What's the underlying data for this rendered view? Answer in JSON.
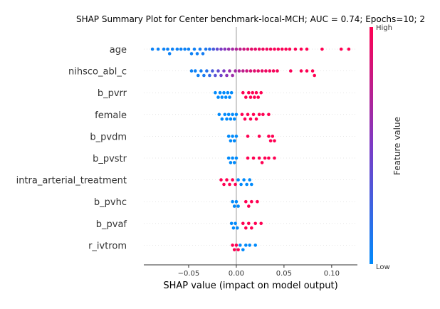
{
  "chart_data": {
    "type": "scatter",
    "title": "SHAP Summary Plot for Center benchmark-local-MCH; AUC = 0.74; Epochs=10; 2",
    "xlabel": "SHAP value (impact on model output)",
    "xlim": [
      -0.097,
      0.127
    ],
    "xticks": [
      {
        "value": -0.05,
        "label": "−0.05"
      },
      {
        "value": 0.0,
        "label": "0.00"
      },
      {
        "value": 0.05,
        "label": "0.05"
      },
      {
        "value": 0.1,
        "label": "0.10"
      }
    ],
    "features": [
      {
        "name": "age",
        "points": [
          {
            "x": -0.088,
            "v": 0.05
          },
          {
            "x": -0.082,
            "v": 0.05
          },
          {
            "x": -0.076,
            "v": 0.05
          },
          {
            "x": -0.072,
            "v": 0.05
          },
          {
            "x": -0.07,
            "v": 0.05
          },
          {
            "x": -0.067,
            "v": 0.05
          },
          {
            "x": -0.062,
            "v": 0.05
          },
          {
            "x": -0.058,
            "v": 0.05
          },
          {
            "x": -0.054,
            "v": 0.05
          },
          {
            "x": -0.05,
            "v": 0.05
          },
          {
            "x": -0.047,
            "v": 0.05
          },
          {
            "x": -0.044,
            "v": 0.06
          },
          {
            "x": -0.041,
            "v": 0.06
          },
          {
            "x": -0.038,
            "v": 0.08
          },
          {
            "x": -0.035,
            "v": 0.08
          },
          {
            "x": -0.032,
            "v": 0.12
          },
          {
            "x": -0.028,
            "v": 0.15
          },
          {
            "x": -0.024,
            "v": 0.3
          },
          {
            "x": -0.02,
            "v": 0.4
          },
          {
            "x": -0.016,
            "v": 0.5
          },
          {
            "x": -0.012,
            "v": 0.55
          },
          {
            "x": -0.008,
            "v": 0.6
          },
          {
            "x": -0.004,
            "v": 0.65
          },
          {
            "x": 0.0,
            "v": 0.7
          },
          {
            "x": 0.004,
            "v": 0.75
          },
          {
            "x": 0.008,
            "v": 0.8
          },
          {
            "x": 0.012,
            "v": 0.85
          },
          {
            "x": 0.016,
            "v": 0.9
          },
          {
            "x": 0.02,
            "v": 0.9
          },
          {
            "x": 0.024,
            "v": 0.92
          },
          {
            "x": 0.028,
            "v": 0.95
          },
          {
            "x": 0.032,
            "v": 0.95
          },
          {
            "x": 0.036,
            "v": 0.97
          },
          {
            "x": 0.04,
            "v": 0.98
          },
          {
            "x": 0.044,
            "v": 0.98
          },
          {
            "x": 0.048,
            "v": 0.98
          },
          {
            "x": 0.052,
            "v": 0.99
          },
          {
            "x": 0.056,
            "v": 0.99
          },
          {
            "x": 0.062,
            "v": 0.99
          },
          {
            "x": 0.068,
            "v": 1.0
          },
          {
            "x": 0.074,
            "v": 1.0
          },
          {
            "x": 0.09,
            "v": 1.0
          },
          {
            "x": 0.11,
            "v": 1.0
          },
          {
            "x": 0.118,
            "v": 1.0
          }
        ]
      },
      {
        "name": "nihsco_abl_c",
        "points": [
          {
            "x": -0.047,
            "v": 0.05
          },
          {
            "x": -0.043,
            "v": 0.05
          },
          {
            "x": -0.04,
            "v": 0.06
          },
          {
            "x": -0.037,
            "v": 0.08
          },
          {
            "x": -0.034,
            "v": 0.1
          },
          {
            "x": -0.031,
            "v": 0.15
          },
          {
            "x": -0.028,
            "v": 0.2
          },
          {
            "x": -0.025,
            "v": 0.3
          },
          {
            "x": -0.022,
            "v": 0.35
          },
          {
            "x": -0.019,
            "v": 0.4
          },
          {
            "x": -0.016,
            "v": 0.45
          },
          {
            "x": -0.013,
            "v": 0.5
          },
          {
            "x": -0.01,
            "v": 0.55
          },
          {
            "x": -0.007,
            "v": 0.6
          },
          {
            "x": -0.004,
            "v": 0.62
          },
          {
            "x": -0.001,
            "v": 0.65
          },
          {
            "x": 0.003,
            "v": 0.7
          },
          {
            "x": 0.007,
            "v": 0.75
          },
          {
            "x": 0.011,
            "v": 0.8
          },
          {
            "x": 0.015,
            "v": 0.85
          },
          {
            "x": 0.019,
            "v": 0.88
          },
          {
            "x": 0.023,
            "v": 0.9
          },
          {
            "x": 0.027,
            "v": 0.92
          },
          {
            "x": 0.031,
            "v": 0.94
          },
          {
            "x": 0.035,
            "v": 0.95
          },
          {
            "x": 0.039,
            "v": 0.96
          },
          {
            "x": 0.043,
            "v": 0.97
          },
          {
            "x": 0.057,
            "v": 0.98
          },
          {
            "x": 0.068,
            "v": 0.99
          },
          {
            "x": 0.074,
            "v": 1.0
          },
          {
            "x": 0.08,
            "v": 1.0
          },
          {
            "x": 0.082,
            "v": 1.0
          }
        ]
      },
      {
        "name": "b_pvrr",
        "points": [
          {
            "x": -0.022,
            "v": 0.0
          },
          {
            "x": -0.019,
            "v": 0.0
          },
          {
            "x": -0.017,
            "v": 0.0
          },
          {
            "x": -0.015,
            "v": 0.0
          },
          {
            "x": -0.013,
            "v": 0.0
          },
          {
            "x": -0.011,
            "v": 0.0
          },
          {
            "x": -0.009,
            "v": 0.0
          },
          {
            "x": -0.007,
            "v": 0.0
          },
          {
            "x": -0.005,
            "v": 0.0
          },
          {
            "x": 0.007,
            "v": 1.0
          },
          {
            "x": 0.01,
            "v": 1.0
          },
          {
            "x": 0.013,
            "v": 1.0
          },
          {
            "x": 0.015,
            "v": 1.0
          },
          {
            "x": 0.017,
            "v": 1.0
          },
          {
            "x": 0.019,
            "v": 1.0
          },
          {
            "x": 0.021,
            "v": 1.0
          },
          {
            "x": 0.023,
            "v": 1.0
          },
          {
            "x": 0.026,
            "v": 1.0
          }
        ]
      },
      {
        "name": "female",
        "points": [
          {
            "x": -0.018,
            "v": 0.0
          },
          {
            "x": -0.015,
            "v": 0.0
          },
          {
            "x": -0.012,
            "v": 0.0
          },
          {
            "x": -0.01,
            "v": 0.0
          },
          {
            "x": -0.008,
            "v": 0.0
          },
          {
            "x": -0.006,
            "v": 0.0
          },
          {
            "x": -0.004,
            "v": 0.0
          },
          {
            "x": -0.002,
            "v": 0.0
          },
          {
            "x": 0.0,
            "v": 0.0
          },
          {
            "x": 0.006,
            "v": 1.0
          },
          {
            "x": 0.009,
            "v": 1.0
          },
          {
            "x": 0.012,
            "v": 1.0
          },
          {
            "x": 0.015,
            "v": 1.0
          },
          {
            "x": 0.018,
            "v": 1.0
          },
          {
            "x": 0.021,
            "v": 1.0
          },
          {
            "x": 0.024,
            "v": 1.0
          },
          {
            "x": 0.028,
            "v": 1.0
          },
          {
            "x": 0.034,
            "v": 1.0
          }
        ]
      },
      {
        "name": "b_pvdm",
        "points": [
          {
            "x": -0.008,
            "v": 0.0
          },
          {
            "x": -0.006,
            "v": 0.0
          },
          {
            "x": -0.004,
            "v": 0.0
          },
          {
            "x": -0.002,
            "v": 0.0
          },
          {
            "x": 0.0,
            "v": 0.0
          },
          {
            "x": 0.012,
            "v": 1.0
          },
          {
            "x": 0.024,
            "v": 1.0
          },
          {
            "x": 0.034,
            "v": 1.0
          },
          {
            "x": 0.036,
            "v": 1.0
          },
          {
            "x": 0.038,
            "v": 1.0
          },
          {
            "x": 0.04,
            "v": 1.0
          }
        ]
      },
      {
        "name": "b_pvstr",
        "points": [
          {
            "x": -0.008,
            "v": 0.0
          },
          {
            "x": -0.006,
            "v": 0.0
          },
          {
            "x": -0.004,
            "v": 0.0
          },
          {
            "x": -0.002,
            "v": 0.0
          },
          {
            "x": 0.0,
            "v": 0.0
          },
          {
            "x": 0.012,
            "v": 1.0
          },
          {
            "x": 0.018,
            "v": 1.0
          },
          {
            "x": 0.024,
            "v": 1.0
          },
          {
            "x": 0.027,
            "v": 1.0
          },
          {
            "x": 0.03,
            "v": 1.0
          },
          {
            "x": 0.034,
            "v": 1.0
          },
          {
            "x": 0.04,
            "v": 1.0
          }
        ]
      },
      {
        "name": "intra_arterial_treatment",
        "points": [
          {
            "x": -0.016,
            "v": 1.0
          },
          {
            "x": -0.013,
            "v": 1.0
          },
          {
            "x": -0.01,
            "v": 1.0
          },
          {
            "x": -0.007,
            "v": 1.0
          },
          {
            "x": -0.004,
            "v": 1.0
          },
          {
            "x": -0.001,
            "v": 1.0
          },
          {
            "x": 0.002,
            "v": 0.0
          },
          {
            "x": 0.005,
            "v": 0.0
          },
          {
            "x": 0.008,
            "v": 0.0
          },
          {
            "x": 0.011,
            "v": 0.0
          },
          {
            "x": 0.014,
            "v": 0.0
          },
          {
            "x": 0.016,
            "v": 0.0
          }
        ]
      },
      {
        "name": "b_pvhc",
        "points": [
          {
            "x": -0.004,
            "v": 0.0
          },
          {
            "x": -0.002,
            "v": 0.0
          },
          {
            "x": 0.0,
            "v": 0.0
          },
          {
            "x": 0.002,
            "v": 0.0
          },
          {
            "x": 0.01,
            "v": 1.0
          },
          {
            "x": 0.013,
            "v": 1.0
          },
          {
            "x": 0.016,
            "v": 1.0
          },
          {
            "x": 0.022,
            "v": 1.0
          }
        ]
      },
      {
        "name": "b_pvaf",
        "points": [
          {
            "x": -0.005,
            "v": 0.0
          },
          {
            "x": -0.003,
            "v": 0.0
          },
          {
            "x": -0.001,
            "v": 0.0
          },
          {
            "x": 0.001,
            "v": 0.0
          },
          {
            "x": 0.007,
            "v": 1.0
          },
          {
            "x": 0.01,
            "v": 1.0
          },
          {
            "x": 0.013,
            "v": 1.0
          },
          {
            "x": 0.016,
            "v": 1.0
          },
          {
            "x": 0.02,
            "v": 1.0
          },
          {
            "x": 0.026,
            "v": 1.0
          }
        ]
      },
      {
        "name": "r_ivtrom",
        "points": [
          {
            "x": -0.004,
            "v": 1.0
          },
          {
            "x": -0.002,
            "v": 1.0
          },
          {
            "x": 0.0,
            "v": 1.0
          },
          {
            "x": 0.002,
            "v": 1.0
          },
          {
            "x": 0.004,
            "v": 0.0
          },
          {
            "x": 0.007,
            "v": 0.0
          },
          {
            "x": 0.01,
            "v": 0.0
          },
          {
            "x": 0.014,
            "v": 0.0
          },
          {
            "x": 0.02,
            "v": 0.0
          }
        ]
      }
    ],
    "colorbar": {
      "title": "Feature value",
      "high_label": "High",
      "low_label": "Low",
      "low_color": "#008afb",
      "mid_color": "#7c3ac5",
      "high_color": "#ff0052"
    },
    "grid": false
  }
}
